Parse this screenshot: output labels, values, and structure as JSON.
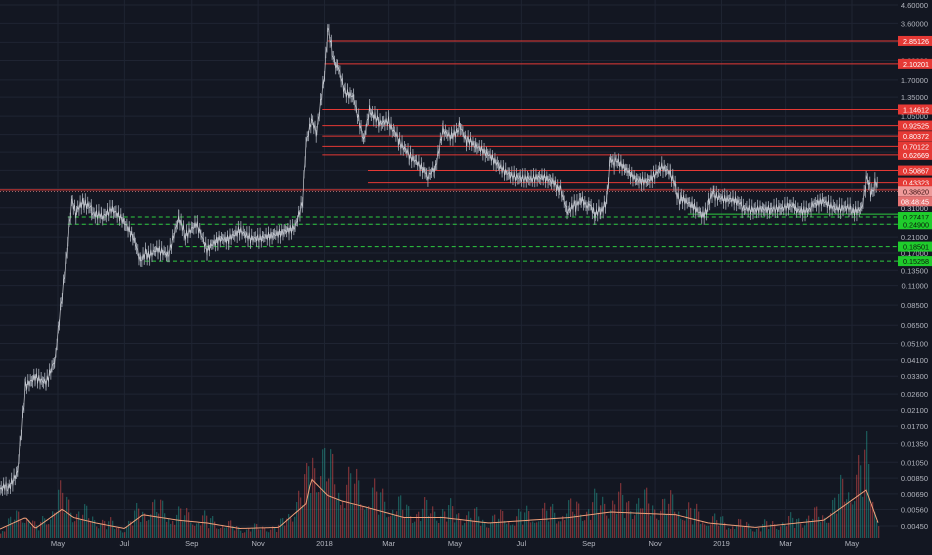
{
  "chart_data": {
    "type": "line",
    "scale": "log",
    "grid": true,
    "y_ticks": [
      "4.60000",
      "3.60000",
      "2.80000",
      "2.20000",
      "1.70000",
      "1.35000",
      "1.05000",
      "0.82000",
      "0.65000",
      "0.51000",
      "0.40000",
      "0.31000",
      "0.24900",
      "0.21000",
      "0.17000",
      "0.13500",
      "0.11000",
      "0.08500",
      "0.06500",
      "0.05100",
      "0.04100",
      "0.03300",
      "0.02600",
      "0.02100",
      "0.01700",
      "0.01350",
      "0.01050",
      "0.00850",
      "0.00690",
      "0.00560",
      "0.00450"
    ],
    "x_ticks": [
      "May",
      "Jul",
      "Sep",
      "Nov",
      "2018",
      "Mar",
      "May",
      "Jul",
      "Sep",
      "Nov",
      "2019",
      "Mar",
      "May"
    ],
    "levels_resistance": [
      {
        "label": "2.85126",
        "value": 2.85126
      },
      {
        "label": "2.10201",
        "value": 2.10201
      },
      {
        "label": "1.14612",
        "value": 1.14612
      },
      {
        "label": "0.92525",
        "value": 0.92525
      },
      {
        "label": "0.80372",
        "value": 0.80372
      },
      {
        "label": "0.70122",
        "value": 0.70122
      },
      {
        "label": "0.62669",
        "value": 0.62669
      },
      {
        "label": "0.50867",
        "value": 0.50867
      },
      {
        "label": "0.43323",
        "value": 0.43323
      },
      {
        "label": "0.39345",
        "value": 0.39345
      }
    ],
    "levels_support": [
      {
        "label": "0.27417",
        "value": 0.27417
      },
      {
        "label": "0.24900",
        "value": 0.249
      },
      {
        "label": "0.18501",
        "value": 0.18501
      },
      {
        "label": "0.15258",
        "value": 0.15258
      }
    ],
    "current_price": {
      "label": "0.38620",
      "value": 0.3862
    },
    "countdown": "08:48:45",
    "price_series": [
      [
        "2017-03-01",
        0.0065
      ],
      [
        "2017-03-15",
        0.0075
      ],
      [
        "2017-03-25",
        0.0095
      ],
      [
        "2017-04-01",
        0.03
      ],
      [
        "2017-04-10",
        0.034
      ],
      [
        "2017-04-20",
        0.031
      ],
      [
        "2017-04-28",
        0.04
      ],
      [
        "2017-05-05",
        0.1
      ],
      [
        "2017-05-10",
        0.2
      ],
      [
        "2017-05-14",
        0.35
      ],
      [
        "2017-05-18",
        0.29
      ],
      [
        "2017-05-25",
        0.33
      ],
      [
        "2017-06-01",
        0.3
      ],
      [
        "2017-06-10",
        0.28
      ],
      [
        "2017-06-20",
        0.3
      ],
      [
        "2017-06-30",
        0.25
      ],
      [
        "2017-07-10",
        0.2
      ],
      [
        "2017-07-16",
        0.15
      ],
      [
        "2017-07-22",
        0.17
      ],
      [
        "2017-08-01",
        0.18
      ],
      [
        "2017-08-10",
        0.16
      ],
      [
        "2017-08-20",
        0.26
      ],
      [
        "2017-08-25",
        0.22
      ],
      [
        "2017-09-05",
        0.25
      ],
      [
        "2017-09-15",
        0.17
      ],
      [
        "2017-09-25",
        0.2
      ],
      [
        "2017-10-05",
        0.21
      ],
      [
        "2017-10-15",
        0.24
      ],
      [
        "2017-10-25",
        0.21
      ],
      [
        "2017-11-05",
        0.2
      ],
      [
        "2017-11-15",
        0.21
      ],
      [
        "2017-11-25",
        0.23
      ],
      [
        "2017-12-05",
        0.25
      ],
      [
        "2017-12-12",
        0.35
      ],
      [
        "2017-12-15",
        0.75
      ],
      [
        "2017-12-20",
        1.0
      ],
      [
        "2017-12-25",
        0.85
      ],
      [
        "2017-12-31",
        1.6
      ],
      [
        "2018-01-04",
        3.3
      ],
      [
        "2018-01-08",
        2.5
      ],
      [
        "2018-01-13",
        2.0
      ],
      [
        "2018-01-20",
        1.4
      ],
      [
        "2018-01-28",
        1.3
      ],
      [
        "2018-02-06",
        0.73
      ],
      [
        "2018-02-12",
        1.15
      ],
      [
        "2018-02-20",
        1.0
      ],
      [
        "2018-03-01",
        1.0
      ],
      [
        "2018-03-10",
        0.78
      ],
      [
        "2018-03-20",
        0.62
      ],
      [
        "2018-03-30",
        0.52
      ],
      [
        "2018-04-05",
        0.47
      ],
      [
        "2018-04-12",
        0.52
      ],
      [
        "2018-04-20",
        0.9
      ],
      [
        "2018-04-28",
        0.82
      ],
      [
        "2018-05-05",
        0.92
      ],
      [
        "2018-05-12",
        0.75
      ],
      [
        "2018-05-20",
        0.68
      ],
      [
        "2018-05-30",
        0.62
      ],
      [
        "2018-06-10",
        0.56
      ],
      [
        "2018-06-20",
        0.5
      ],
      [
        "2018-06-30",
        0.46
      ],
      [
        "2018-07-10",
        0.44
      ],
      [
        "2018-07-20",
        0.45
      ],
      [
        "2018-07-30",
        0.44
      ],
      [
        "2018-08-05",
        0.4
      ],
      [
        "2018-08-12",
        0.29
      ],
      [
        "2018-08-20",
        0.32
      ],
      [
        "2018-08-25",
        0.35
      ],
      [
        "2018-09-01",
        0.32
      ],
      [
        "2018-09-07",
        0.28
      ],
      [
        "2018-09-12",
        0.3
      ],
      [
        "2018-09-18",
        0.36
      ],
      [
        "2018-09-21",
        0.62
      ],
      [
        "2018-09-25",
        0.57
      ],
      [
        "2018-10-05",
        0.5
      ],
      [
        "2018-10-15",
        0.45
      ],
      [
        "2018-10-25",
        0.46
      ],
      [
        "2018-11-06",
        0.53
      ],
      [
        "2018-11-15",
        0.47
      ],
      [
        "2018-11-20",
        0.4
      ],
      [
        "2018-11-25",
        0.34
      ],
      [
        "2018-12-05",
        0.32
      ],
      [
        "2018-12-15",
        0.29
      ],
      [
        "2018-12-20",
        0.32
      ],
      [
        "2018-12-25",
        0.38
      ],
      [
        "2019-01-05",
        0.34
      ],
      [
        "2019-01-20",
        0.32
      ],
      [
        "2019-02-01",
        0.29
      ],
      [
        "2019-02-15",
        0.31
      ],
      [
        "2019-02-25",
        0.3
      ],
      [
        "2019-03-10",
        0.31
      ],
      [
        "2019-03-25",
        0.31
      ],
      [
        "2019-04-05",
        0.35
      ],
      [
        "2019-04-15",
        0.32
      ],
      [
        "2019-04-30",
        0.3
      ],
      [
        "2019-05-10",
        0.32
      ],
      [
        "2019-05-14",
        0.45
      ],
      [
        "2019-05-18",
        0.39
      ],
      [
        "2019-05-22",
        0.42
      ],
      [
        "2019-05-25",
        0.4
      ]
    ],
    "volume_series": [
      [
        "2017-03-01",
        0.02
      ],
      [
        "2017-04-01",
        0.3
      ],
      [
        "2017-04-10",
        0.1
      ],
      [
        "2017-05-05",
        0.45
      ],
      [
        "2017-05-15",
        0.3
      ],
      [
        "2017-06-05",
        0.2
      ],
      [
        "2017-07-01",
        0.1
      ],
      [
        "2017-07-18",
        0.35
      ],
      [
        "2017-08-20",
        0.25
      ],
      [
        "2017-09-15",
        0.2
      ],
      [
        "2017-10-15",
        0.1
      ],
      [
        "2017-11-20",
        0.12
      ],
      [
        "2017-12-15",
        0.55
      ],
      [
        "2017-12-20",
        1.0
      ],
      [
        "2018-01-04",
        0.7
      ],
      [
        "2018-01-17",
        0.6
      ],
      [
        "2018-02-06",
        0.5
      ],
      [
        "2018-03-15",
        0.3
      ],
      [
        "2018-04-20",
        0.3
      ],
      [
        "2018-06-01",
        0.2
      ],
      [
        "2018-08-14",
        0.3
      ],
      [
        "2018-09-21",
        0.4
      ],
      [
        "2018-11-20",
        0.35
      ],
      [
        "2018-12-20",
        0.2
      ],
      [
        "2019-02-01",
        0.12
      ],
      [
        "2019-04-05",
        0.25
      ],
      [
        "2019-05-14",
        0.8
      ],
      [
        "2019-05-25",
        0.2
      ]
    ]
  }
}
